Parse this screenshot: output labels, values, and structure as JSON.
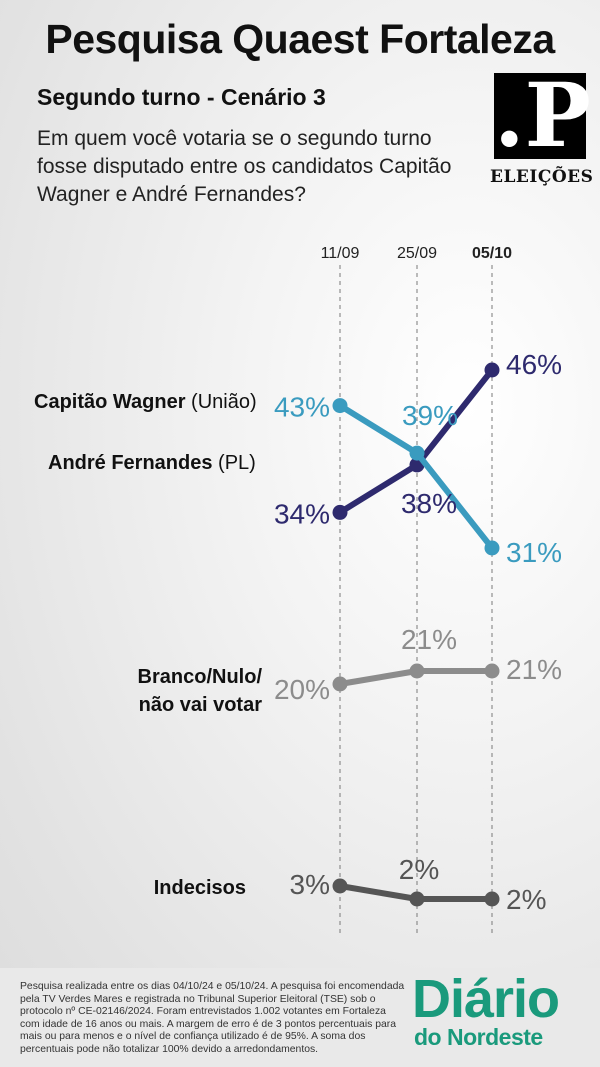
{
  "header": {
    "title": "Pesquisa Quaest Fortaleza",
    "subtitle": "Segundo turno - Cenário 3",
    "question": "Em quem você votaria se o segundo turno fosse disputado entre os candidatos Capitão Wagner e André Fernandes?"
  },
  "logo": {
    "mark": ".P",
    "label": "ELEIÇÕES"
  },
  "colors": {
    "wagner": "#3a9bbf",
    "fernandes": "#2e2a6e",
    "branco": "#8c8c8c",
    "indecisos": "#555555"
  },
  "chart_data": {
    "type": "line",
    "x": [
      "11/09",
      "25/09",
      "05/10"
    ],
    "series": [
      {
        "name": "Capitão Wagner",
        "party": "(União)",
        "values": [
          43,
          39,
          31
        ]
      },
      {
        "name": "André Fernandes",
        "party": "(PL)",
        "values": [
          34,
          38,
          46
        ]
      },
      {
        "name": "Branco/Nulo/ não vai votar",
        "party": "",
        "values": [
          20,
          21,
          21
        ]
      },
      {
        "name": "Indecisos",
        "party": "",
        "values": [
          3,
          2,
          2
        ]
      }
    ],
    "value_suffix": "%",
    "grid": false,
    "legend": "left"
  },
  "footer": {
    "footnote": "Pesquisa realizada entre os dias 04/10/24 e 05/10/24. A pesquisa foi encomendada pela TV Verdes Mares e registrada no Tribunal Superior Eleitoral (TSE) sob o protocolo nº CE-02146/2024. Foram entrevistados 1.002 votantes em Fortaleza com idade de 16 anos ou mais. A margem de erro é de 3 pontos percentuais para mais ou para menos e o nível de confiança utilizado é de 95%. A soma dos percentuais pode não totalizar 100% devido a arredondamentos.",
    "brand_line1": "Diário",
    "brand_line2": "do Nordeste"
  }
}
